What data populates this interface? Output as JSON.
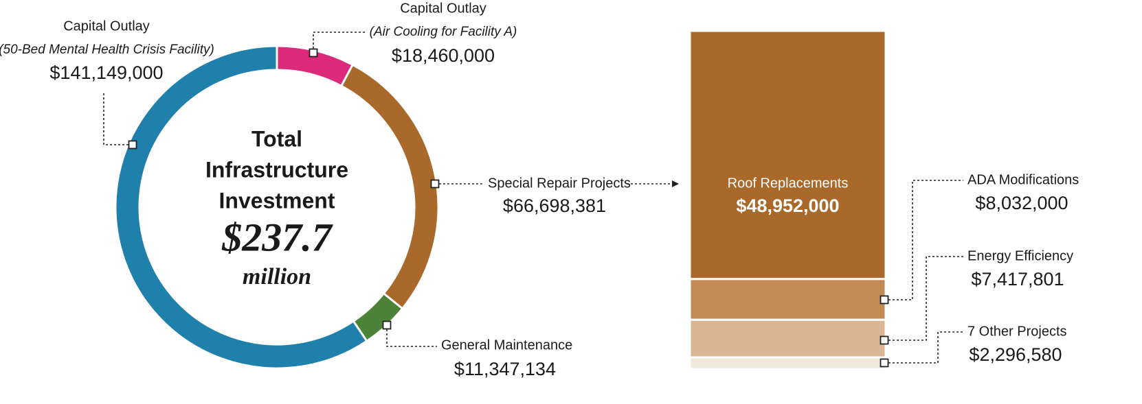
{
  "chart_data": [
    {
      "type": "pie",
      "center_title": [
        "Total",
        "Infrastructure",
        "Investment"
      ],
      "center_value": "$237.7",
      "center_unit": "million",
      "categories": [
        "Capital Outlay",
        "Special Repair Projects",
        "General Maintenance",
        "Capital Outlay"
      ],
      "category_notes": [
        "(Air Cooling for Facility A)",
        null,
        null,
        "(50-Bed Mental Health Crisis Facility)"
      ],
      "values": [
        18460000,
        66698381,
        11347134,
        141149000
      ],
      "value_labels": [
        "$18,460,000",
        "$66,698,381",
        "$11,347,134",
        "$141,149,000"
      ],
      "colors": [
        "#dc2a7a",
        "#a8692a",
        "#4d8239",
        "#1f80ab"
      ]
    },
    {
      "type": "bar",
      "categories": [
        "Roof Replacements",
        "ADA Modifications",
        "Energy Efficiency",
        "7 Other Projects"
      ],
      "values": [
        48952000,
        8032000,
        7417801,
        2296580
      ],
      "value_labels": [
        "$48,952,000",
        "$8,032,000",
        "$7,417,801",
        "$2,296,580"
      ],
      "colors": [
        "#a8692a",
        "#c28a55",
        "#d9b594",
        "#f1e7da"
      ]
    }
  ]
}
